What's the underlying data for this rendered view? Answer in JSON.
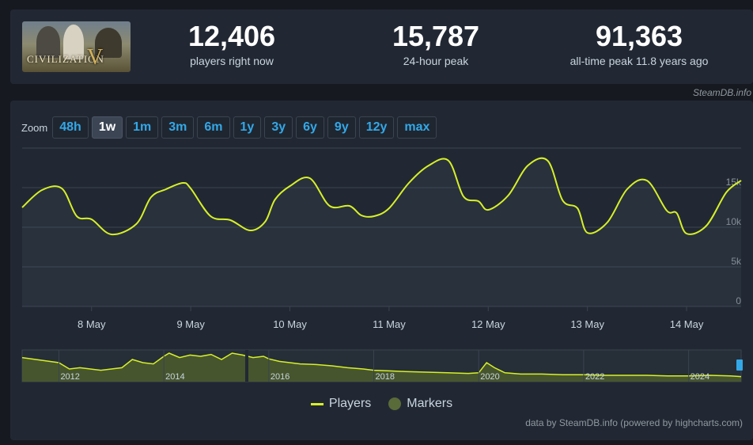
{
  "stats": [
    {
      "value": "12,406",
      "label": "players right now"
    },
    {
      "value": "15,787",
      "label": "24-hour peak"
    },
    {
      "value": "91,363",
      "label": "all-time peak 11.8 years ago"
    }
  ],
  "banner": {
    "title": "CIVILIZATION",
    "numeral": "V"
  },
  "credit_top": "SteamDB.info",
  "zoom": {
    "label": "Zoom",
    "buttons": [
      "48h",
      "1w",
      "1m",
      "3m",
      "6m",
      "1y",
      "3y",
      "6y",
      "9y",
      "12y",
      "max"
    ],
    "active": "1w"
  },
  "legend": {
    "players": "Players",
    "markers": "Markers"
  },
  "credit_bottom": "data by SteamDB.info (powered by highcharts.com)",
  "colors": {
    "line": "#d6f028",
    "marker": "#5a6b3a",
    "accent": "#33a8e8"
  },
  "chart_data": [
    {
      "type": "line",
      "series": [
        {
          "name": "Players",
          "x": [
            7.3,
            7.5,
            7.7,
            7.85,
            8.0,
            8.2,
            8.45,
            8.6,
            8.75,
            8.92,
            9.0,
            9.2,
            9.4,
            9.6,
            9.75,
            9.85,
            10.0,
            10.2,
            10.4,
            10.6,
            10.72,
            10.85,
            11.0,
            11.2,
            11.4,
            11.6,
            11.75,
            11.9,
            12.0,
            12.2,
            12.4,
            12.6,
            12.75,
            12.9,
            13.0,
            13.2,
            13.4,
            13.6,
            13.8,
            13.9,
            14.0,
            14.2,
            14.4,
            14.55
          ],
          "y": [
            12.5,
            14.7,
            14.9,
            11.4,
            11.0,
            9.1,
            10.4,
            13.8,
            14.8,
            15.6,
            14.9,
            11.4,
            10.9,
            9.6,
            10.7,
            13.5,
            15.2,
            16.2,
            12.7,
            12.7,
            11.5,
            11.4,
            12.4,
            15.6,
            17.8,
            18.4,
            13.9,
            13.3,
            12.2,
            14.0,
            17.8,
            18.4,
            13.4,
            12.4,
            9.3,
            10.6,
            14.8,
            15.9,
            12.1,
            11.8,
            9.2,
            10.2,
            14.4,
            15.9
          ]
        }
      ],
      "x_ticks": [
        "8 May",
        "9 May",
        "10 May",
        "11 May",
        "12 May",
        "13 May",
        "14 May"
      ],
      "y_ticks": [
        "0",
        "5k",
        "10k",
        "15k"
      ],
      "ylim": [
        0,
        20
      ],
      "legend_position": "bottom-center",
      "grid": true
    },
    {
      "type": "area",
      "name": "navigator",
      "x_ticks": [
        "2012",
        "2014",
        "2016",
        "2018",
        "2020",
        "2022",
        "2024"
      ],
      "x": [
        2012.0,
        2012.2,
        2012.4,
        2012.8,
        2013.0,
        2013.2,
        2013.4,
        2013.6,
        2013.8,
        2014.0,
        2014.1,
        2014.3,
        2014.5,
        2014.7,
        2014.9,
        2015.1,
        2015.3,
        2015.5,
        2015.7,
        2015.9,
        2016.0,
        2016.2,
        2016.4,
        2016.6,
        2016.9,
        2017.2,
        2017.5,
        2017.8,
        2018.0,
        2018.3,
        2018.6,
        2019.0,
        2019.4,
        2019.8,
        2020.0,
        2020.15,
        2020.3,
        2020.5,
        2020.8,
        2021.2,
        2021.6,
        2022.0,
        2022.4,
        2022.8,
        2023.2,
        2023.6,
        2024.0,
        2024.4,
        2024.8,
        2025.0
      ],
      "y": [
        30,
        20,
        22,
        18,
        20,
        22,
        35,
        30,
        28,
        40,
        45,
        38,
        42,
        40,
        43,
        35,
        45,
        42,
        38,
        40,
        36,
        32,
        30,
        28,
        27,
        25,
        22,
        20,
        18,
        17,
        16,
        15,
        14,
        13,
        14,
        30,
        22,
        14,
        12,
        12,
        11,
        11,
        10,
        10,
        10,
        9,
        9,
        10,
        9,
        8
      ]
    }
  ]
}
